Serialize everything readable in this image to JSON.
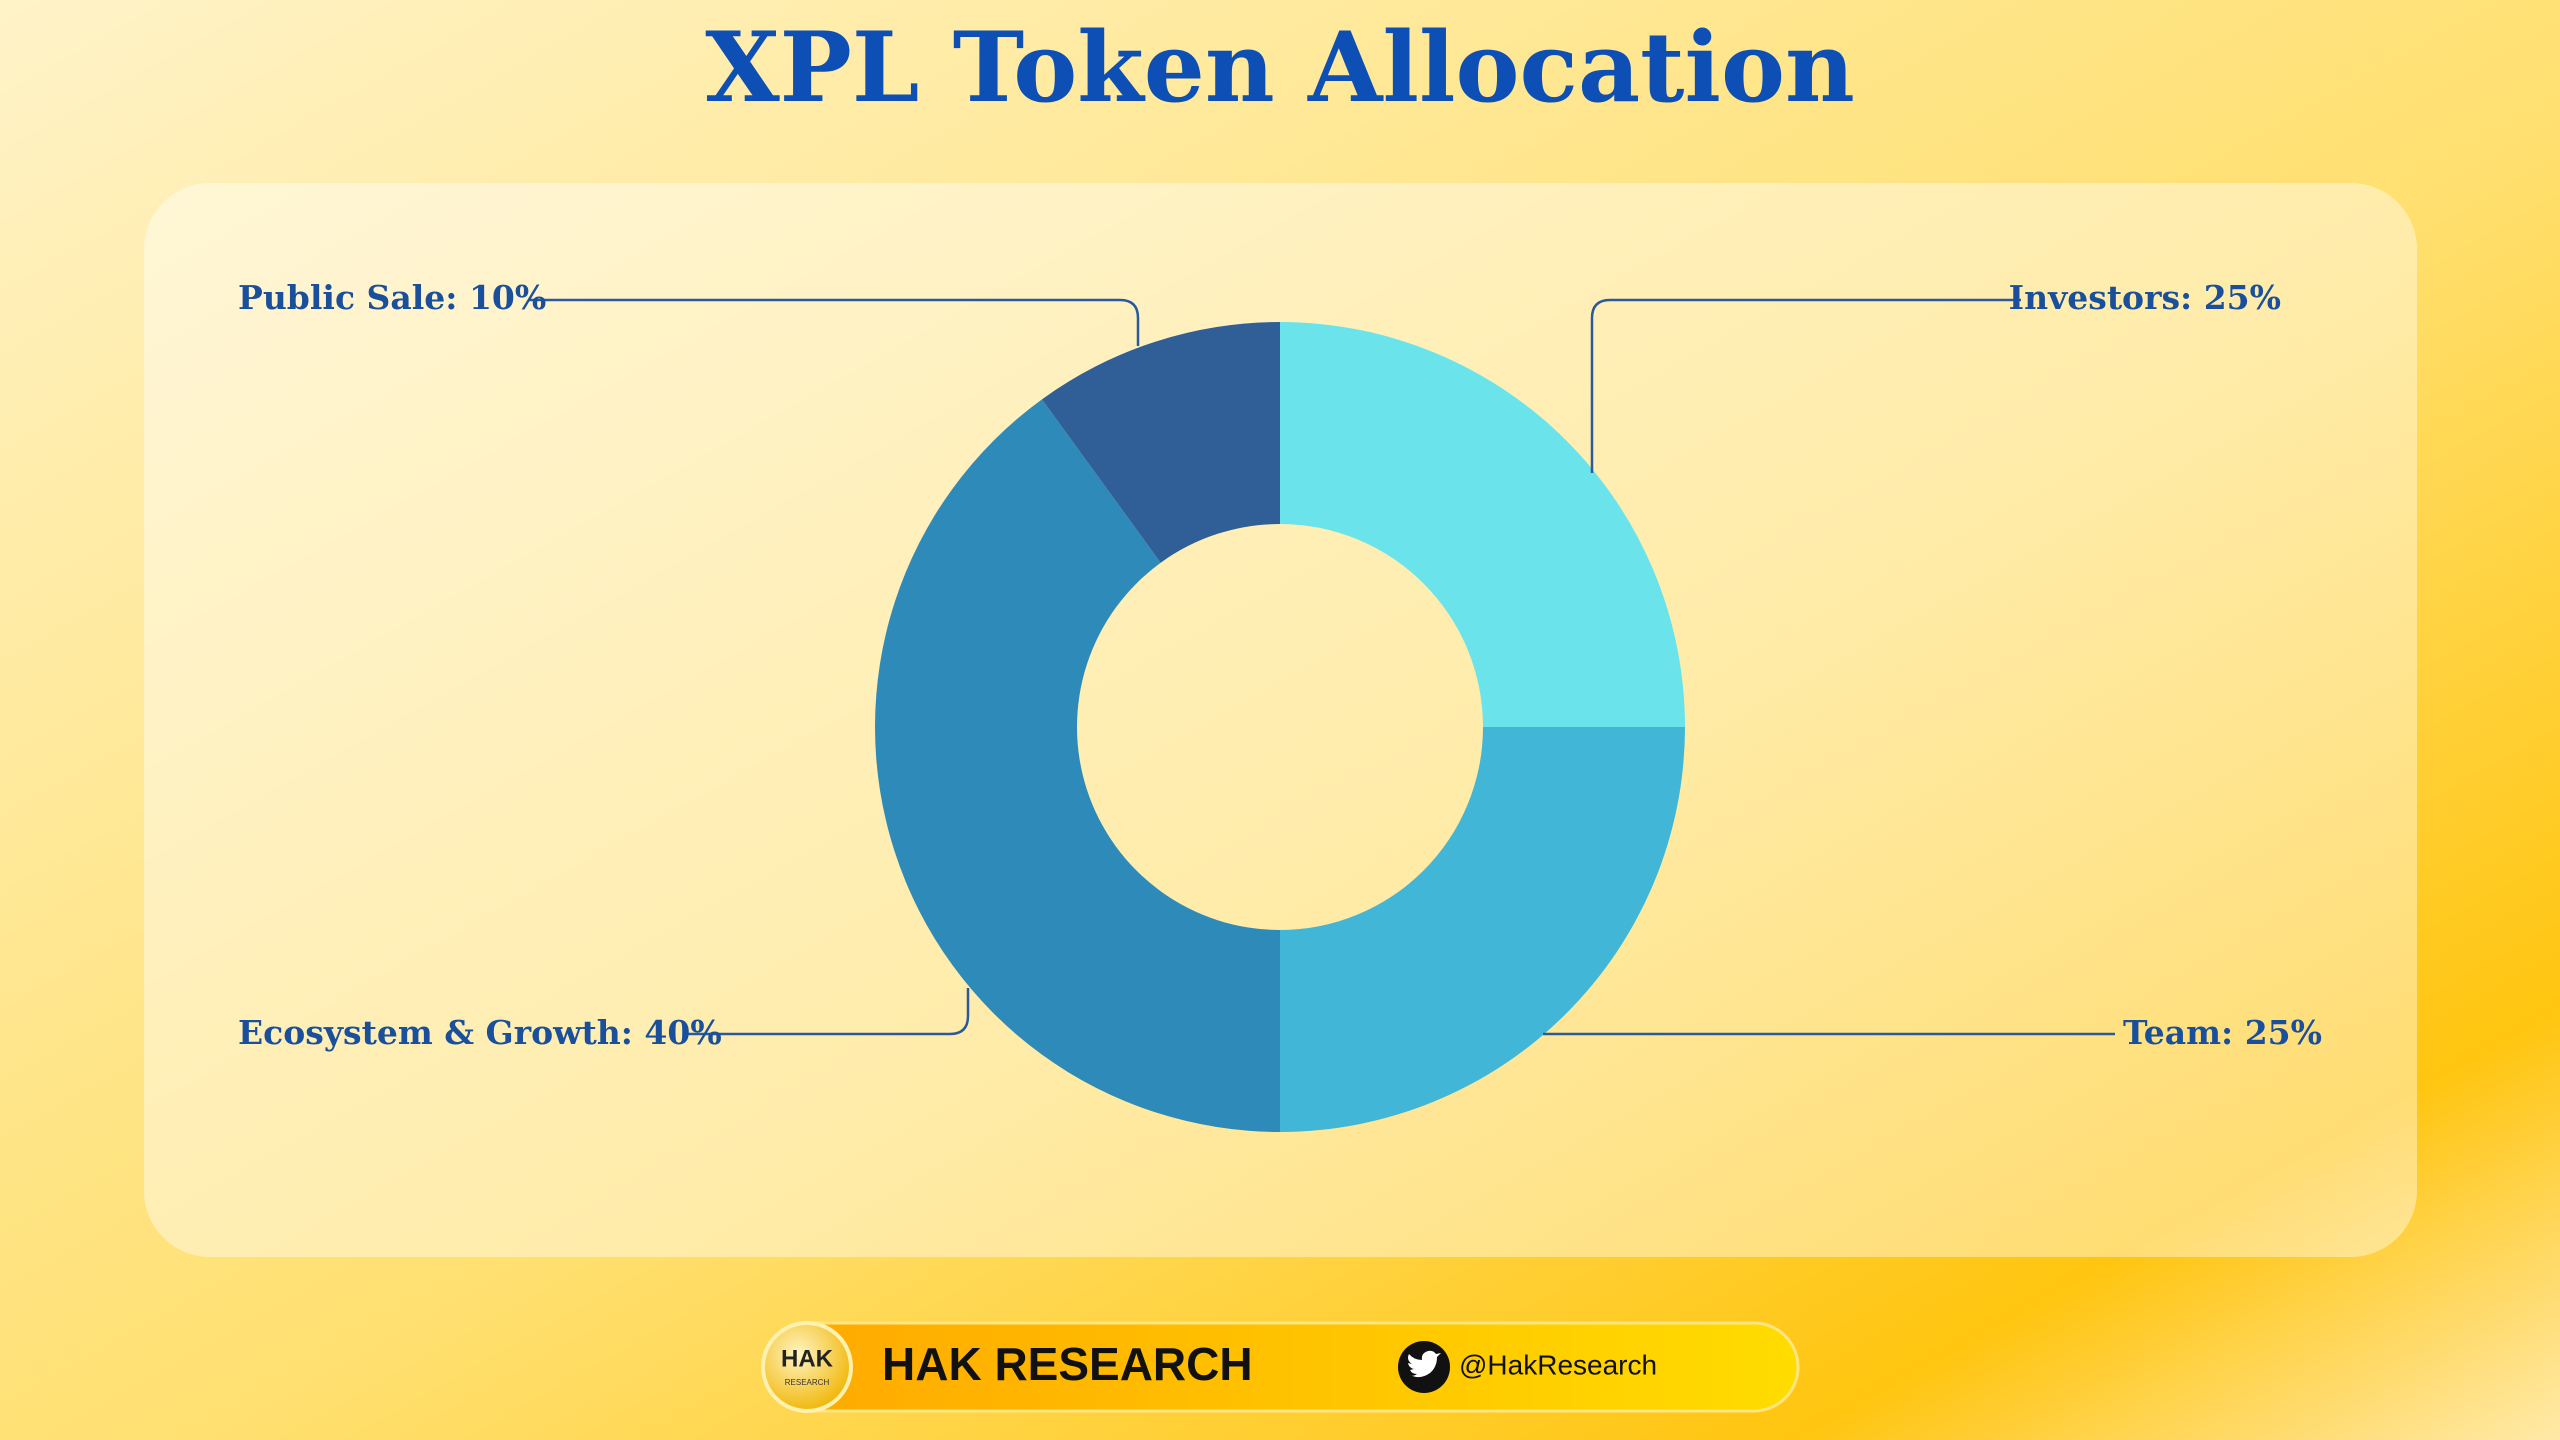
{
  "chart_data": {
    "type": "donut",
    "title": "XPL Token Allocation",
    "values": [
      25,
      25,
      40,
      10
    ],
    "value_labels": [
      "Investors: 25%",
      "Team: 25%",
      "Ecosystem & Growth: 40%",
      "Public Sale: 10%"
    ],
    "colors": [
      "#6ae4ea",
      "#42b6d6",
      "#2e8bb9",
      "#2f5f96"
    ]
  },
  "footer": {
    "logo": "HAK",
    "logo_sub": "RESEARCH",
    "brand": "HAK RESEARCH",
    "handle": "@HakResearch"
  }
}
